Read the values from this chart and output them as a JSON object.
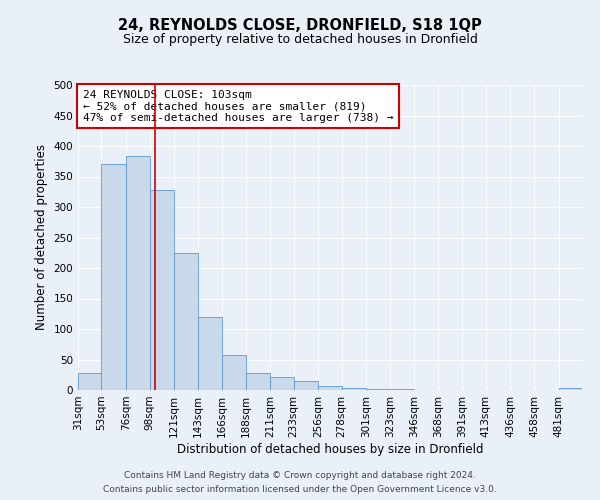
{
  "title": "24, REYNOLDS CLOSE, DRONFIELD, S18 1QP",
  "subtitle": "Size of property relative to detached houses in Dronfield",
  "xlabel": "Distribution of detached houses by size in Dronfield",
  "ylabel": "Number of detached properties",
  "bin_labels": [
    "31sqm",
    "53sqm",
    "76sqm",
    "98sqm",
    "121sqm",
    "143sqm",
    "166sqm",
    "188sqm",
    "211sqm",
    "233sqm",
    "256sqm",
    "278sqm",
    "301sqm",
    "323sqm",
    "346sqm",
    "368sqm",
    "391sqm",
    "413sqm",
    "436sqm",
    "458sqm",
    "481sqm"
  ],
  "bar_heights": [
    28,
    370,
    383,
    328,
    225,
    120,
    58,
    28,
    21,
    15,
    7,
    4,
    2,
    1,
    0,
    0,
    0,
    0,
    0,
    0,
    3
  ],
  "bar_color": "#c9d9ea",
  "bar_edgecolor": "#5b9bd5",
  "ylim": [
    0,
    500
  ],
  "yticks": [
    0,
    50,
    100,
    150,
    200,
    250,
    300,
    350,
    400,
    450,
    500
  ],
  "vline_x": 103,
  "vline_color": "#cc0000",
  "bin_edges_sqm": [
    31,
    53,
    76,
    98,
    121,
    143,
    166,
    188,
    211,
    233,
    256,
    278,
    301,
    323,
    346,
    368,
    391,
    413,
    436,
    458,
    481
  ],
  "annotation_title": "24 REYNOLDS CLOSE: 103sqm",
  "annotation_line1": "← 52% of detached houses are smaller (819)",
  "annotation_line2": "47% of semi-detached houses are larger (738) →",
  "annotation_box_color": "#ffffff",
  "annotation_box_edgecolor": "#cc0000",
  "footer_line1": "Contains HM Land Registry data © Crown copyright and database right 2024.",
  "footer_line2": "Contains public sector information licensed under the Open Government Licence v3.0.",
  "background_color": "#eaf0f7",
  "grid_color": "#ffffff",
  "title_fontsize": 10.5,
  "subtitle_fontsize": 9,
  "axis_label_fontsize": 8.5,
  "tick_fontsize": 7.5,
  "footer_fontsize": 6.5
}
